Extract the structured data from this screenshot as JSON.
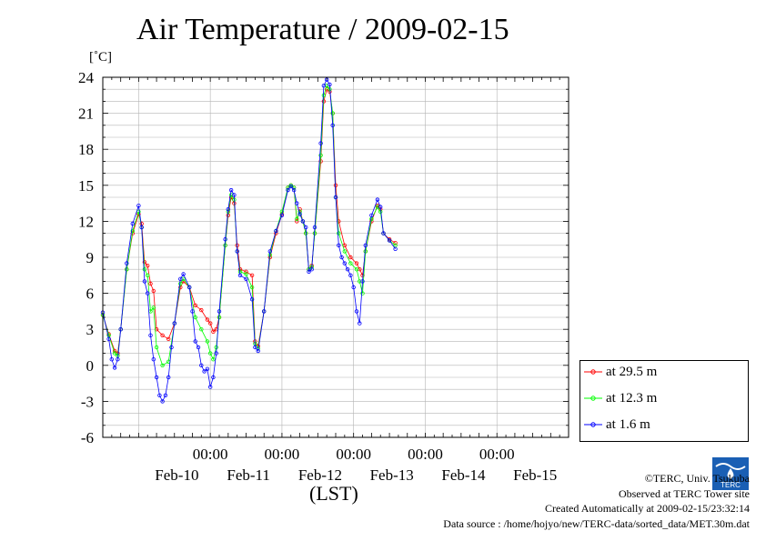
{
  "header": {
    "title": "Air Temperature / 2009-02-15"
  },
  "yaxis_unit": "[˚C]",
  "legend": {
    "items": [
      {
        "label": "at 29.5 m",
        "color": "#ff0000"
      },
      {
        "label": "at 12.3 m",
        "color": "#00ff00"
      },
      {
        "label": "at 1.6 m",
        "color": "#0000ff"
      }
    ]
  },
  "credits": {
    "copyright": "©TERC, Univ. Tsukuba",
    "site": "Observed at TERC Tower site",
    "created": "Created Automatically at 2009-02-15/23:32:14",
    "source": "Data source : /home/hojyo/new/TERC-data/sorted_data/MET.30m.dat"
  },
  "logo_text": "TERC",
  "chart_data": {
    "type": "line",
    "title": "Air Temperature / 2009-02-15",
    "xlabel": "(LST)",
    "ylabel": "[˚C]",
    "ylim": [
      -6,
      24
    ],
    "yticks": [
      -6,
      -3,
      0,
      3,
      6,
      9,
      12,
      15,
      18,
      21,
      24
    ],
    "xlim": [
      "2009-02-09 12:00",
      "2009-02-15 24:00"
    ],
    "xtick_labels": [
      "00:00",
      "00:00",
      "00:00",
      "00:00",
      "00:00"
    ],
    "date_labels": [
      "Feb-10",
      "Feb-11",
      "Feb-12",
      "Feb-13",
      "Feb-14",
      "Feb-15"
    ],
    "grid": true,
    "legend_position": "right-bottom",
    "series": [
      {
        "name": "at 29.5 m",
        "color": "#ff0000",
        "points": [
          [
            "2009-02-09 12:00",
            4.2
          ],
          [
            "2009-02-09 14:00",
            2.6
          ],
          [
            "2009-02-09 16:00",
            1.2
          ],
          [
            "2009-02-09 17:00",
            1.0
          ],
          [
            "2009-02-09 18:00",
            3.0
          ],
          [
            "2009-02-09 20:00",
            8.0
          ],
          [
            "2009-02-09 22:00",
            11.0
          ],
          [
            "2009-02-10 00:00",
            12.6
          ],
          [
            "2009-02-10 01:00",
            11.8
          ],
          [
            "2009-02-10 02:00",
            8.6
          ],
          [
            "2009-02-10 03:00",
            8.3
          ],
          [
            "2009-02-10 04:00",
            6.8
          ],
          [
            "2009-02-10 05:00",
            6.2
          ],
          [
            "2009-02-10 06:00",
            3.0
          ],
          [
            "2009-02-10 08:00",
            2.5
          ],
          [
            "2009-02-10 10:00",
            2.2
          ],
          [
            "2009-02-10 12:00",
            3.5
          ],
          [
            "2009-02-10 14:00",
            6.5
          ],
          [
            "2009-02-10 15:00",
            7.0
          ],
          [
            "2009-02-10 17:00",
            6.5
          ],
          [
            "2009-02-10 19:00",
            5.0
          ],
          [
            "2009-02-10 21:00",
            4.6
          ],
          [
            "2009-02-10 23:00",
            3.8
          ],
          [
            "2009-02-11 00:00",
            3.5
          ],
          [
            "2009-02-11 01:00",
            2.8
          ],
          [
            "2009-02-11 02:00",
            3.0
          ],
          [
            "2009-02-11 03:00",
            4.0
          ],
          [
            "2009-02-11 05:00",
            10.0
          ],
          [
            "2009-02-11 06:00",
            12.5
          ],
          [
            "2009-02-11 07:00",
            14.0
          ],
          [
            "2009-02-11 08:00",
            13.5
          ],
          [
            "2009-02-11 09:00",
            10.0
          ],
          [
            "2009-02-11 10:00",
            8.0
          ],
          [
            "2009-02-11 12:00",
            7.8
          ],
          [
            "2009-02-11 14:00",
            7.5
          ],
          [
            "2009-02-11 15:00",
            2.0
          ],
          [
            "2009-02-11 16:00",
            1.6
          ],
          [
            "2009-02-11 18:00",
            4.5
          ],
          [
            "2009-02-11 20:00",
            9.0
          ],
          [
            "2009-02-11 22:00",
            11.0
          ],
          [
            "2009-02-12 00:00",
            12.6
          ],
          [
            "2009-02-12 02:00",
            14.8
          ],
          [
            "2009-02-12 03:00",
            15.0
          ],
          [
            "2009-02-12 04:00",
            14.8
          ],
          [
            "2009-02-12 05:00",
            12.0
          ],
          [
            "2009-02-12 06:00",
            13.0
          ],
          [
            "2009-02-12 07:00",
            12.0
          ],
          [
            "2009-02-12 08:00",
            11.0
          ],
          [
            "2009-02-12 09:00",
            8.0
          ],
          [
            "2009-02-12 10:00",
            8.3
          ],
          [
            "2009-02-12 11:00",
            11.0
          ],
          [
            "2009-02-12 13:00",
            17.0
          ],
          [
            "2009-02-12 14:00",
            22.0
          ],
          [
            "2009-02-12 15:00",
            23.0
          ],
          [
            "2009-02-12 16:00",
            22.8
          ],
          [
            "2009-02-12 17:00",
            21.0
          ],
          [
            "2009-02-12 18:00",
            15.0
          ],
          [
            "2009-02-12 19:00",
            12.0
          ],
          [
            "2009-02-12 21:00",
            10.0
          ],
          [
            "2009-02-12 23:00",
            9.0
          ],
          [
            "2009-02-13 01:00",
            8.5
          ],
          [
            "2009-02-13 02:00",
            8.0
          ],
          [
            "2009-02-13 03:00",
            7.5
          ],
          [
            "2009-02-13 04:00",
            9.5
          ],
          [
            "2009-02-13 06:00",
            12.0
          ],
          [
            "2009-02-13 08:00",
            13.3
          ],
          [
            "2009-02-13 09:00",
            13.0
          ],
          [
            "2009-02-13 10:00",
            11.0
          ],
          [
            "2009-02-13 12:00",
            10.5
          ],
          [
            "2009-02-13 14:00",
            10.2
          ]
        ]
      },
      {
        "name": "at 12.3 m",
        "color": "#00ff00",
        "points": [
          [
            "2009-02-09 12:00",
            4.2
          ],
          [
            "2009-02-09 14:00",
            2.5
          ],
          [
            "2009-02-09 16:00",
            1.0
          ],
          [
            "2009-02-09 17:00",
            0.8
          ],
          [
            "2009-02-09 18:00",
            3.0
          ],
          [
            "2009-02-09 20:00",
            8.0
          ],
          [
            "2009-02-09 22:00",
            11.2
          ],
          [
            "2009-02-10 00:00",
            12.8
          ],
          [
            "2009-02-10 01:00",
            11.5
          ],
          [
            "2009-02-10 02:00",
            8.0
          ],
          [
            "2009-02-10 03:00",
            7.5
          ],
          [
            "2009-02-10 04:00",
            4.5
          ],
          [
            "2009-02-10 05:00",
            4.8
          ],
          [
            "2009-02-10 06:00",
            1.5
          ],
          [
            "2009-02-10 08:00",
            0.0
          ],
          [
            "2009-02-10 10:00",
            0.3
          ],
          [
            "2009-02-10 12:00",
            3.5
          ],
          [
            "2009-02-10 14:00",
            6.8
          ],
          [
            "2009-02-10 15:00",
            7.2
          ],
          [
            "2009-02-10 17:00",
            6.5
          ],
          [
            "2009-02-10 19:00",
            4.0
          ],
          [
            "2009-02-10 21:00",
            3.0
          ],
          [
            "2009-02-10 23:00",
            2.0
          ],
          [
            "2009-02-11 00:00",
            1.0
          ],
          [
            "2009-02-11 01:00",
            0.5
          ],
          [
            "2009-02-11 02:00",
            1.5
          ],
          [
            "2009-02-11 03:00",
            4.0
          ],
          [
            "2009-02-11 05:00",
            10.0
          ],
          [
            "2009-02-11 06:00",
            12.8
          ],
          [
            "2009-02-11 07:00",
            14.2
          ],
          [
            "2009-02-11 08:00",
            13.8
          ],
          [
            "2009-02-11 09:00",
            9.5
          ],
          [
            "2009-02-11 10:00",
            7.8
          ],
          [
            "2009-02-11 12:00",
            7.6
          ],
          [
            "2009-02-11 14:00",
            6.5
          ],
          [
            "2009-02-11 15:00",
            1.8
          ],
          [
            "2009-02-11 16:00",
            1.4
          ],
          [
            "2009-02-11 18:00",
            4.5
          ],
          [
            "2009-02-11 20:00",
            9.2
          ],
          [
            "2009-02-11 22:00",
            11.2
          ],
          [
            "2009-02-12 00:00",
            12.8
          ],
          [
            "2009-02-12 02:00",
            14.8
          ],
          [
            "2009-02-12 03:00",
            15.0
          ],
          [
            "2009-02-12 04:00",
            14.8
          ],
          [
            "2009-02-12 05:00",
            12.2
          ],
          [
            "2009-02-12 06:00",
            12.8
          ],
          [
            "2009-02-12 07:00",
            12.0
          ],
          [
            "2009-02-12 08:00",
            11.0
          ],
          [
            "2009-02-12 09:00",
            8.0
          ],
          [
            "2009-02-12 10:00",
            8.2
          ],
          [
            "2009-02-12 11:00",
            11.0
          ],
          [
            "2009-02-12 13:00",
            17.5
          ],
          [
            "2009-02-12 14:00",
            22.5
          ],
          [
            "2009-02-12 15:00",
            23.3
          ],
          [
            "2009-02-12 16:00",
            23.0
          ],
          [
            "2009-02-12 17:00",
            21.0
          ],
          [
            "2009-02-12 18:00",
            14.0
          ],
          [
            "2009-02-12 19:00",
            11.0
          ],
          [
            "2009-02-12 21:00",
            9.5
          ],
          [
            "2009-02-12 23:00",
            8.5
          ],
          [
            "2009-02-13 01:00",
            8.0
          ],
          [
            "2009-02-13 02:00",
            7.0
          ],
          [
            "2009-02-13 03:00",
            6.0
          ],
          [
            "2009-02-13 04:00",
            9.5
          ],
          [
            "2009-02-13 06:00",
            12.2
          ],
          [
            "2009-02-13 08:00",
            13.2
          ],
          [
            "2009-02-13 09:00",
            12.8
          ],
          [
            "2009-02-13 10:00",
            11.0
          ],
          [
            "2009-02-13 12:00",
            10.4
          ],
          [
            "2009-02-13 14:00",
            10.0
          ]
        ]
      },
      {
        "name": "at 1.6 m",
        "color": "#0000ff",
        "points": [
          [
            "2009-02-09 12:00",
            4.4
          ],
          [
            "2009-02-09 14:00",
            2.2
          ],
          [
            "2009-02-09 15:00",
            0.5
          ],
          [
            "2009-02-09 16:00",
            -0.2
          ],
          [
            "2009-02-09 17:00",
            0.5
          ],
          [
            "2009-02-09 18:00",
            3.0
          ],
          [
            "2009-02-09 20:00",
            8.5
          ],
          [
            "2009-02-09 22:00",
            11.8
          ],
          [
            "2009-02-10 00:00",
            13.3
          ],
          [
            "2009-02-10 01:00",
            11.5
          ],
          [
            "2009-02-10 02:00",
            7.0
          ],
          [
            "2009-02-10 03:00",
            6.0
          ],
          [
            "2009-02-10 04:00",
            2.5
          ],
          [
            "2009-02-10 05:00",
            0.5
          ],
          [
            "2009-02-10 06:00",
            -1.0
          ],
          [
            "2009-02-10 07:00",
            -2.5
          ],
          [
            "2009-02-10 08:00",
            -3.0
          ],
          [
            "2009-02-10 09:00",
            -2.5
          ],
          [
            "2009-02-10 10:00",
            -1.0
          ],
          [
            "2009-02-10 11:00",
            1.5
          ],
          [
            "2009-02-10 12:00",
            3.5
          ],
          [
            "2009-02-10 14:00",
            7.2
          ],
          [
            "2009-02-10 15:00",
            7.6
          ],
          [
            "2009-02-10 17:00",
            6.5
          ],
          [
            "2009-02-10 18:00",
            4.5
          ],
          [
            "2009-02-10 19:00",
            2.0
          ],
          [
            "2009-02-10 20:00",
            1.5
          ],
          [
            "2009-02-10 21:00",
            0.0
          ],
          [
            "2009-02-10 22:00",
            -0.5
          ],
          [
            "2009-02-10 23:00",
            -0.3
          ],
          [
            "2009-02-11 00:00",
            -1.8
          ],
          [
            "2009-02-11 01:00",
            -1.0
          ],
          [
            "2009-02-11 02:00",
            1.0
          ],
          [
            "2009-02-11 03:00",
            4.5
          ],
          [
            "2009-02-11 05:00",
            10.5
          ],
          [
            "2009-02-11 06:00",
            13.0
          ],
          [
            "2009-02-11 07:00",
            14.6
          ],
          [
            "2009-02-11 08:00",
            14.2
          ],
          [
            "2009-02-11 09:00",
            9.5
          ],
          [
            "2009-02-11 10:00",
            7.5
          ],
          [
            "2009-02-11 12:00",
            7.2
          ],
          [
            "2009-02-11 14:00",
            5.5
          ],
          [
            "2009-02-11 15:00",
            1.5
          ],
          [
            "2009-02-11 16:00",
            1.2
          ],
          [
            "2009-02-11 18:00",
            4.5
          ],
          [
            "2009-02-11 20:00",
            9.5
          ],
          [
            "2009-02-11 22:00",
            11.2
          ],
          [
            "2009-02-12 00:00",
            12.5
          ],
          [
            "2009-02-12 02:00",
            14.6
          ],
          [
            "2009-02-12 03:00",
            14.9
          ],
          [
            "2009-02-12 04:00",
            14.6
          ],
          [
            "2009-02-12 05:00",
            13.5
          ],
          [
            "2009-02-12 06:00",
            12.6
          ],
          [
            "2009-02-12 07:00",
            12.0
          ],
          [
            "2009-02-12 08:00",
            11.5
          ],
          [
            "2009-02-12 09:00",
            7.8
          ],
          [
            "2009-02-12 10:00",
            8.0
          ],
          [
            "2009-02-12 11:00",
            11.5
          ],
          [
            "2009-02-12 13:00",
            18.5
          ],
          [
            "2009-02-12 14:00",
            23.3
          ],
          [
            "2009-02-12 15:00",
            23.8
          ],
          [
            "2009-02-12 16:00",
            23.4
          ],
          [
            "2009-02-12 17:00",
            20.0
          ],
          [
            "2009-02-12 18:00",
            14.0
          ],
          [
            "2009-02-12 19:00",
            10.0
          ],
          [
            "2009-02-12 20:00",
            9.0
          ],
          [
            "2009-02-12 21:00",
            8.5
          ],
          [
            "2009-02-12 22:00",
            8.0
          ],
          [
            "2009-02-12 23:00",
            7.5
          ],
          [
            "2009-02-13 00:00",
            6.5
          ],
          [
            "2009-02-13 01:00",
            4.5
          ],
          [
            "2009-02-13 02:00",
            3.5
          ],
          [
            "2009-02-13 03:00",
            7.0
          ],
          [
            "2009-02-13 04:00",
            10.0
          ],
          [
            "2009-02-13 06:00",
            12.5
          ],
          [
            "2009-02-13 08:00",
            13.8
          ],
          [
            "2009-02-13 09:00",
            13.2
          ],
          [
            "2009-02-13 10:00",
            11.0
          ],
          [
            "2009-02-13 12:00",
            10.4
          ],
          [
            "2009-02-13 14:00",
            9.7
          ]
        ]
      }
    ]
  }
}
